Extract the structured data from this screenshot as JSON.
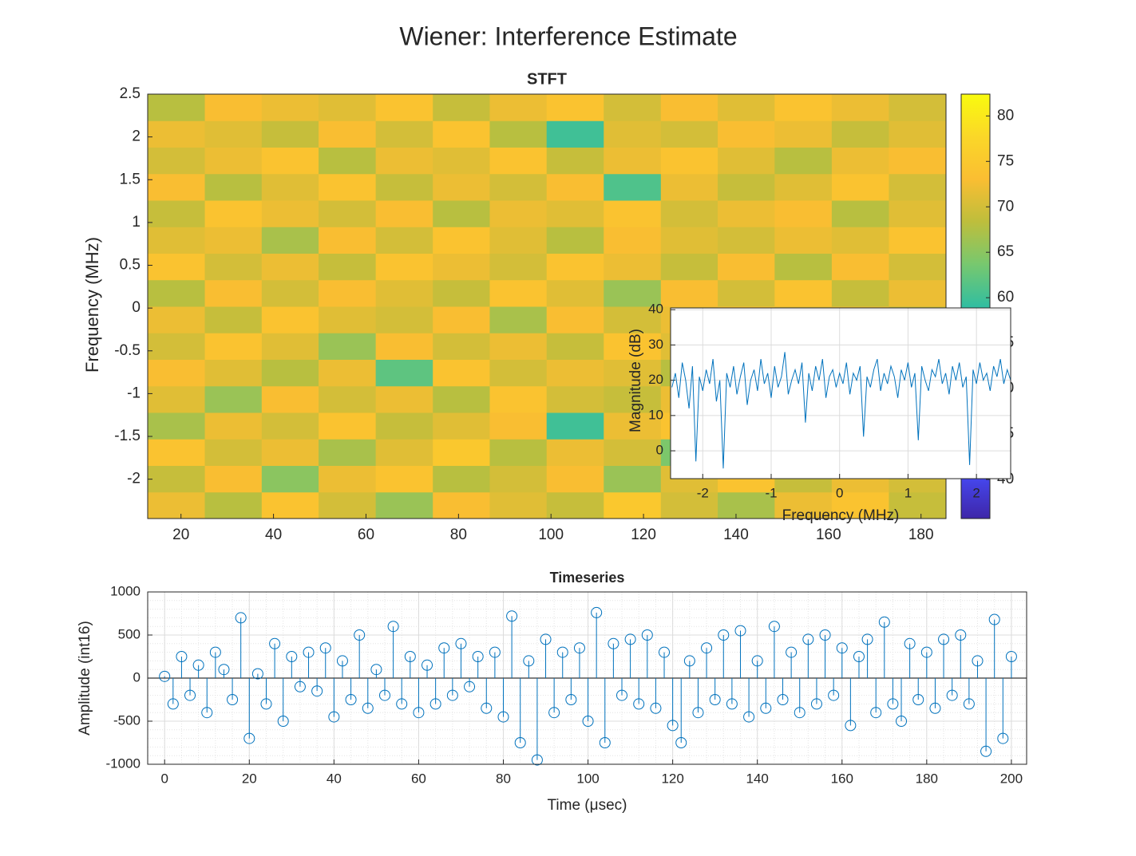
{
  "figure_title": "Wiener: Interference Estimate",
  "chart_data": [
    {
      "type": "heatmap",
      "title": "STFT",
      "y_label": "Frequency (MHz)",
      "x": [
        19.0,
        31.3,
        43.6,
        55.9,
        68.3,
        80.6,
        92.9,
        105.2,
        117.6,
        129.9,
        142.2,
        154.5,
        166.9,
        179.2
      ],
      "y": [
        -2.305,
        -1.995,
        -1.685,
        -1.375,
        -1.065,
        -0.755,
        -0.445,
        -0.135,
        0.175,
        0.485,
        0.795,
        1.105,
        1.415,
        1.725,
        2.035,
        2.345
      ],
      "z": [
        [
          72,
          68,
          74,
          70,
          66,
          73,
          71,
          69,
          75,
          70,
          67,
          72,
          74,
          69
        ],
        [
          69,
          73,
          65,
          72,
          74,
          68,
          70,
          73,
          66,
          71,
          74,
          69,
          72,
          70
        ],
        [
          74,
          70,
          72,
          67,
          71,
          75,
          68,
          72,
          70,
          64,
          71,
          73,
          68,
          72
        ],
        [
          67,
          72,
          70,
          74,
          69,
          71,
          73,
          60,
          72,
          74,
          70,
          68,
          71,
          73
        ],
        [
          71,
          66,
          73,
          70,
          72,
          68,
          74,
          70,
          69,
          72,
          66,
          73,
          70,
          68
        ],
        [
          73,
          71,
          68,
          72,
          62,
          74,
          70,
          72,
          71,
          68,
          73,
          70,
          74,
          71
        ],
        [
          70,
          74,
          71,
          66,
          73,
          70,
          72,
          69,
          74,
          71,
          69,
          72,
          67,
          73
        ],
        [
          72,
          69,
          74,
          71,
          70,
          73,
          67,
          73,
          70,
          72,
          74,
          71,
          72,
          69
        ],
        [
          68,
          73,
          70,
          73,
          71,
          69,
          74,
          71,
          66,
          73,
          70,
          74,
          69,
          72
        ],
        [
          74,
          70,
          72,
          69,
          74,
          72,
          70,
          74,
          72,
          69,
          73,
          68,
          73,
          70
        ],
        [
          71,
          72,
          67,
          73,
          70,
          74,
          71,
          68,
          73,
          71,
          70,
          72,
          71,
          74
        ],
        [
          69,
          74,
          72,
          70,
          73,
          68,
          72,
          71,
          74,
          70,
          72,
          73,
          68,
          71
        ],
        [
          73,
          68,
          71,
          74,
          69,
          72,
          70,
          73,
          61,
          72,
          69,
          71,
          74,
          70
        ],
        [
          70,
          72,
          74,
          68,
          72,
          71,
          74,
          69,
          72,
          74,
          71,
          68,
          72,
          73
        ],
        [
          72,
          71,
          69,
          73,
          70,
          74,
          68,
          60,
          71,
          70,
          73,
          72,
          69,
          71
        ],
        [
          68,
          73,
          72,
          71,
          74,
          69,
          72,
          74,
          70,
          73,
          71,
          74,
          72,
          70
        ]
      ],
      "xlim": [
        12.8,
        185.4
      ],
      "xticks": [
        20,
        40,
        60,
        80,
        100,
        120,
        140,
        160,
        180
      ],
      "ylim": [
        -2.46,
        2.5
      ],
      "yticks": [
        -2,
        -1.5,
        -1,
        -0.5,
        0,
        0.5,
        1,
        1.5,
        2,
        2.5
      ],
      "clim": [
        35.7,
        82.4
      ],
      "cticks": [
        40,
        45,
        50,
        55,
        60,
        65,
        70,
        75,
        80
      ],
      "colormap": "parula"
    },
    {
      "type": "line",
      "x_label": "Frequency (MHz)",
      "y_label": "Magnitude (dB)",
      "color": "#0072bd",
      "grid": true,
      "x": [
        -2.45,
        -2.4,
        -2.35,
        -2.3,
        -2.25,
        -2.2,
        -2.15,
        -2.1,
        -2.05,
        -2.0,
        -1.95,
        -1.9,
        -1.85,
        -1.8,
        -1.75,
        -1.7,
        -1.65,
        -1.6,
        -1.55,
        -1.5,
        -1.45,
        -1.4,
        -1.35,
        -1.3,
        -1.25,
        -1.2,
        -1.15,
        -1.1,
        -1.05,
        -1.0,
        -0.95,
        -0.9,
        -0.85,
        -0.8,
        -0.75,
        -0.7,
        -0.65,
        -0.6,
        -0.55,
        -0.5,
        -0.45,
        -0.4,
        -0.35,
        -0.3,
        -0.25,
        -0.2,
        -0.15,
        -0.1,
        -0.05,
        0.0,
        0.05,
        0.1,
        0.15,
        0.2,
        0.25,
        0.3,
        0.35,
        0.4,
        0.45,
        0.5,
        0.55,
        0.6,
        0.65,
        0.7,
        0.75,
        0.8,
        0.85,
        0.9,
        0.95,
        1.0,
        1.05,
        1.1,
        1.15,
        1.2,
        1.25,
        1.3,
        1.35,
        1.4,
        1.45,
        1.5,
        1.55,
        1.6,
        1.65,
        1.7,
        1.75,
        1.8,
        1.85,
        1.9,
        1.95,
        2.0,
        2.05,
        2.1,
        2.15,
        2.2,
        2.25,
        2.3,
        2.35,
        2.4,
        2.45,
        2.5
      ],
      "values": [
        18,
        22,
        15,
        25,
        20,
        12,
        24,
        -3,
        21,
        17,
        23,
        19,
        26,
        14,
        20,
        -5,
        22,
        18,
        24,
        16,
        21,
        25,
        13,
        20,
        23,
        17,
        26,
        19,
        22,
        15,
        24,
        18,
        21,
        28,
        16,
        20,
        23,
        19,
        25,
        8,
        22,
        17,
        24,
        20,
        26,
        15,
        21,
        23,
        18,
        22,
        19,
        25,
        16,
        22,
        20,
        24,
        4,
        21,
        18,
        23,
        26,
        17,
        22,
        19,
        24,
        21,
        15,
        23,
        20,
        25,
        18,
        22,
        3,
        24,
        20,
        17,
        23,
        21,
        26,
        19,
        22,
        16,
        24,
        20,
        25,
        18,
        21,
        -4,
        23,
        19,
        25,
        20,
        22,
        17,
        24,
        21,
        26,
        19,
        23,
        20
      ],
      "xlim": [
        -2.47,
        2.5
      ],
      "xticks": [
        -2,
        -1,
        0,
        1,
        2
      ],
      "ylim": [
        -7.9,
        40.5
      ],
      "yticks": [
        0,
        10,
        20,
        30,
        40
      ]
    },
    {
      "type": "stem",
      "title": "Timeseries",
      "x_label": "Time (μsec)",
      "y_label": "Amplitude (int16)",
      "color": "#0072bd",
      "grid": true,
      "x": [
        0,
        2,
        4,
        6,
        8,
        10,
        12,
        14,
        16,
        18,
        20,
        22,
        24,
        26,
        28,
        30,
        32,
        34,
        36,
        38,
        40,
        42,
        44,
        46,
        48,
        50,
        52,
        54,
        56,
        58,
        60,
        62,
        64,
        66,
        68,
        70,
        72,
        74,
        76,
        78,
        80,
        82,
        84,
        86,
        88,
        90,
        92,
        94,
        96,
        98,
        100,
        102,
        104,
        106,
        108,
        110,
        112,
        114,
        116,
        118,
        120,
        122,
        124,
        126,
        128,
        130,
        132,
        134,
        136,
        138,
        140,
        142,
        144,
        146,
        148,
        150,
        152,
        154,
        156,
        158,
        160,
        162,
        164,
        166,
        168,
        170,
        172,
        174,
        176,
        178,
        180,
        182,
        184,
        186,
        188,
        190,
        192,
        194,
        196,
        198,
        200
      ],
      "values": [
        20,
        -300,
        250,
        -200,
        150,
        -400,
        300,
        100,
        -250,
        700,
        -700,
        50,
        -300,
        400,
        -500,
        250,
        -100,
        300,
        -150,
        350,
        -450,
        200,
        -250,
        500,
        -350,
        100,
        -200,
        600,
        -300,
        250,
        -400,
        150,
        -300,
        350,
        -200,
        400,
        -100,
        250,
        -350,
        300,
        -450,
        720,
        -750,
        200,
        -950,
        450,
        -400,
        300,
        -250,
        350,
        -500,
        760,
        -750,
        400,
        -200,
        450,
        -300,
        500,
        -350,
        300,
        -550,
        -750,
        200,
        -400,
        350,
        -250,
        500,
        -300,
        550,
        -450,
        200,
        -350,
        600,
        -250,
        300,
        -400,
        450,
        -300,
        500,
        -200,
        350,
        -550,
        250,
        450,
        -400,
        650,
        -300,
        -500,
        400,
        -250,
        300,
        -350,
        450,
        -200,
        500,
        -300,
        200,
        -850,
        680,
        -700,
        250
      ],
      "xlim": [
        -4,
        203.6
      ],
      "xticks": [
        0,
        20,
        40,
        60,
        80,
        100,
        120,
        140,
        160,
        180,
        200
      ],
      "ylim": [
        -1000,
        1000
      ],
      "yticks": [
        -1000,
        -500,
        0,
        500,
        1000
      ]
    }
  ]
}
